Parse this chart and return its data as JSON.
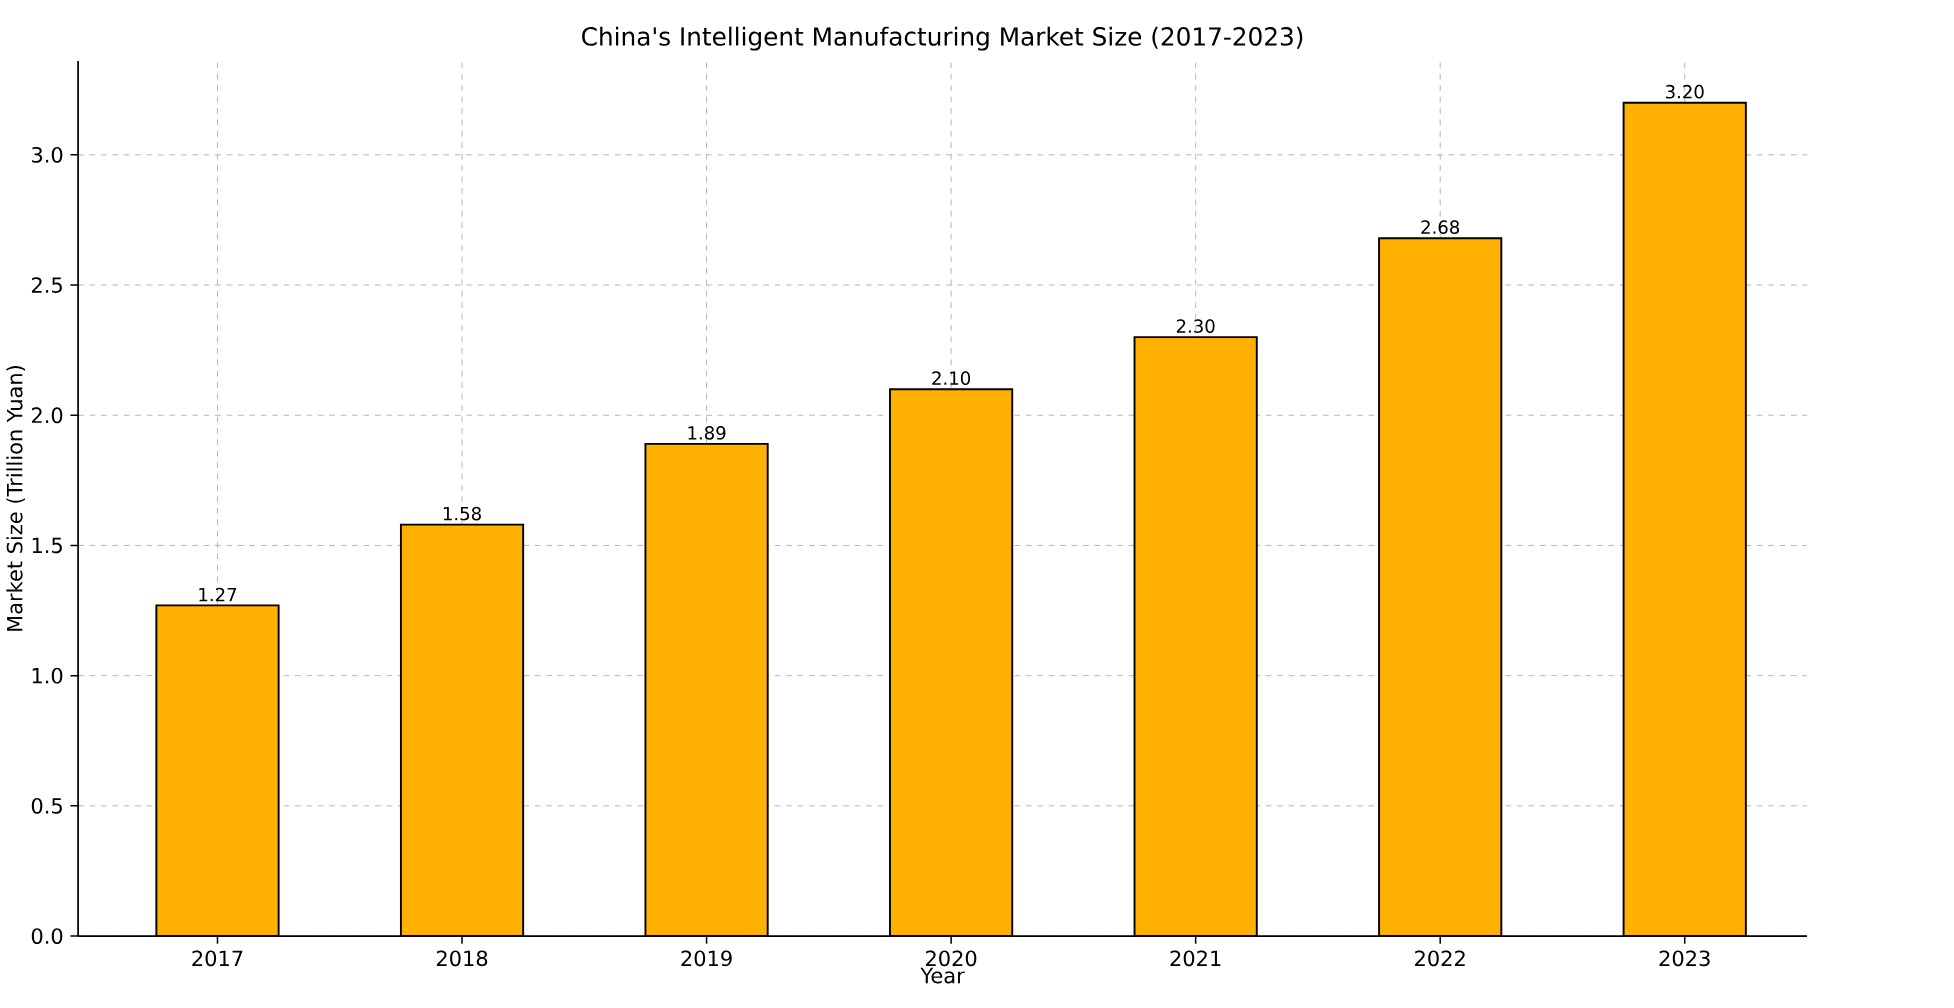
{
  "chart_data": {
    "type": "bar",
    "title": "China's Intelligent Manufacturing Market Size (2017-2023)",
    "xlabel": "Year",
    "ylabel": "Market Size (Trillion Yuan)",
    "categories": [
      "2017",
      "2018",
      "2019",
      "2020",
      "2021",
      "2022",
      "2023"
    ],
    "values": [
      1.27,
      1.58,
      1.89,
      2.1,
      2.3,
      2.68,
      3.2
    ],
    "value_labels": [
      "1.27",
      "1.58",
      "1.89",
      "2.10",
      "2.30",
      "2.68",
      "3.20"
    ],
    "color": "#ffb000",
    "ylim": [
      0,
      3.36
    ],
    "yticks": [
      {
        "value": 0,
        "label": "0.0"
      },
      {
        "value": 0.5,
        "label": "0.5"
      },
      {
        "value": 1,
        "label": "1.0"
      },
      {
        "value": 1.5,
        "label": "1.5"
      },
      {
        "value": 2,
        "label": "2.0"
      },
      {
        "value": 2.5,
        "label": "2.5"
      },
      {
        "value": 3,
        "label": "3.0"
      }
    ],
    "grid": true
  }
}
